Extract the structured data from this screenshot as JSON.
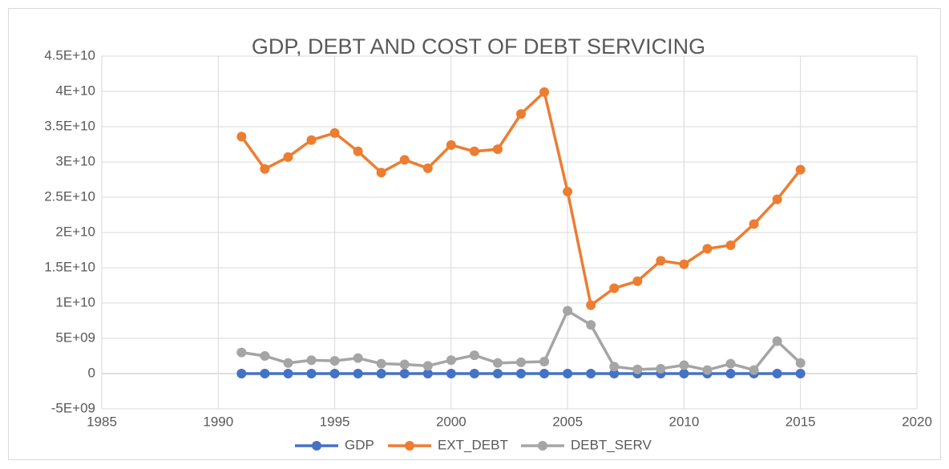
{
  "chart_data": {
    "type": "line",
    "title": "GDP, DEBT AND COST OF DEBT SERVICING",
    "x": [
      1991,
      1992,
      1993,
      1994,
      1995,
      1996,
      1997,
      1998,
      1999,
      2000,
      2001,
      2002,
      2003,
      2004,
      2005,
      2006,
      2007,
      2008,
      2009,
      2010,
      2011,
      2012,
      2013,
      2014,
      2015
    ],
    "series": [
      {
        "name": "GDP",
        "color": "#4472c4",
        "values": [
          0,
          0,
          0,
          0,
          0,
          0,
          0,
          0,
          0,
          0,
          0,
          0,
          0,
          0,
          0,
          0,
          0,
          0,
          0,
          0,
          0,
          0,
          0,
          0,
          0
        ]
      },
      {
        "name": "EXT_DEBT",
        "color": "#ed7d31",
        "values": [
          33600000000,
          29000000000,
          30700000000,
          33100000000,
          34100000000,
          31500000000,
          28500000000,
          30300000000,
          29100000000,
          32400000000,
          31500000000,
          31800000000,
          36800000000,
          39900000000,
          25800000000,
          9700000000,
          12100000000,
          13100000000,
          16000000000,
          15500000000,
          17700000000,
          18200000000,
          21200000000,
          24700000000,
          28900000000
        ]
      },
      {
        "name": "DEBT_SERV",
        "color": "#a5a5a5",
        "values": [
          3000000000,
          2500000000,
          1500000000,
          1900000000,
          1800000000,
          2200000000,
          1400000000,
          1300000000,
          1100000000,
          1900000000,
          2600000000,
          1500000000,
          1600000000,
          1700000000,
          8900000000,
          6900000000,
          1000000000,
          600000000,
          700000000,
          1200000000,
          500000000,
          1400000000,
          500000000,
          4600000000,
          1500000000
        ]
      }
    ],
    "xlim": [
      1985,
      2020
    ],
    "xticks": [
      1985,
      1990,
      1995,
      2000,
      2005,
      2010,
      2015,
      2020
    ],
    "ylim": [
      -5000000000,
      45000000000
    ],
    "yticks": [
      {
        "value": -5000000000,
        "label": "-5E+09"
      },
      0,
      {
        "value": 5000000000,
        "label": "5E+09"
      },
      {
        "value": 10000000000,
        "label": "1E+10"
      },
      {
        "value": 15000000000,
        "label": "1.5E+10"
      },
      {
        "value": 20000000000,
        "label": "2E+10"
      },
      {
        "value": 25000000000,
        "label": "2.5E+10"
      },
      {
        "value": 30000000000,
        "label": "3E+10"
      },
      {
        "value": 35000000000,
        "label": "3.5E+10"
      },
      {
        "value": 40000000000,
        "label": "4E+10"
      },
      {
        "value": 45000000000,
        "label": "4.5E+10"
      }
    ],
    "grid": true,
    "legend": "bottom"
  }
}
